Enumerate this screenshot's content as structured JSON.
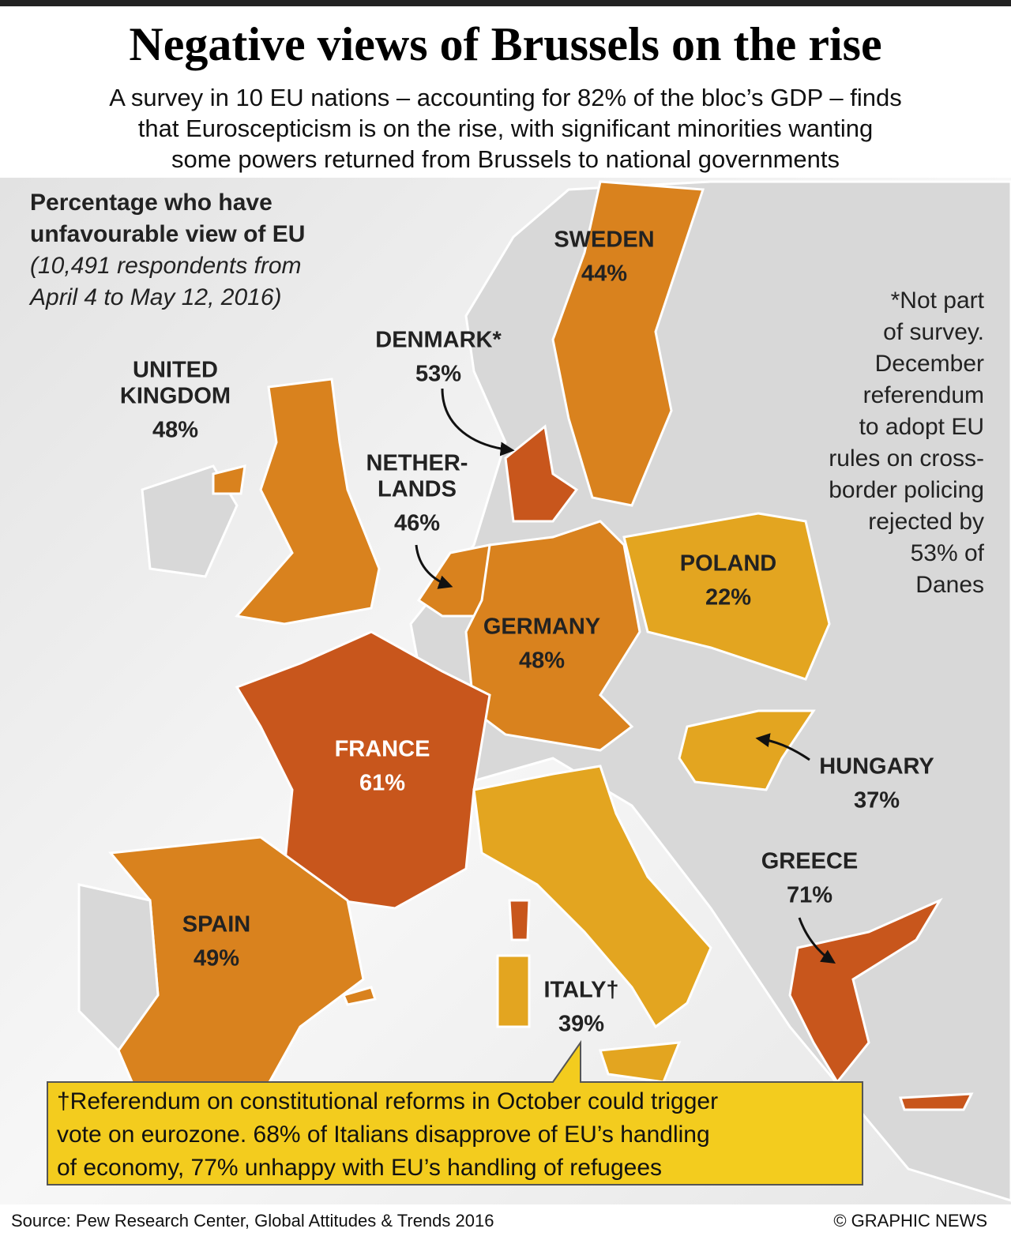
{
  "header": {
    "title": "Negative views of Brussels on the rise",
    "subtitle": [
      "A survey in 10 EU nations – accounting for 82% of the bloc’s GDP – finds",
      "that Euroscepticism is on the rise, with significant minorities wanting",
      "some powers returned from Brussels to national governments"
    ]
  },
  "key": {
    "heading": [
      "Percentage who have",
      "unfavourable view of EU"
    ],
    "note": [
      "(10,491 respondents from",
      "April 4 to May 12, 2016)"
    ]
  },
  "countries": [
    {
      "name": [
        "SWEDEN"
      ],
      "value": 44,
      "value_label": "44%",
      "color": "#d9821e",
      "text_color": "#222"
    },
    {
      "name": [
        "DENMARK*"
      ],
      "value": 53,
      "value_label": "53%",
      "color": "#c8561c",
      "text_color": "#222"
    },
    {
      "name": [
        "UNITED",
        "KINGDOM"
      ],
      "value": 48,
      "value_label": "48%",
      "color": "#d9821e",
      "text_color": "#222"
    },
    {
      "name": [
        "NETHER-",
        "LANDS"
      ],
      "value": 46,
      "value_label": "46%",
      "color": "#d9821e",
      "text_color": "#222"
    },
    {
      "name": [
        "POLAND"
      ],
      "value": 22,
      "value_label": "22%",
      "color": "#e3a520",
      "text_color": "#222"
    },
    {
      "name": [
        "GERMANY"
      ],
      "value": 48,
      "value_label": "48%",
      "color": "#d9821e",
      "text_color": "#222"
    },
    {
      "name": [
        "FRANCE"
      ],
      "value": 61,
      "value_label": "61%",
      "color": "#c8561c",
      "text_color": "#ffffff"
    },
    {
      "name": [
        "HUNGARY"
      ],
      "value": 37,
      "value_label": "37%",
      "color": "#e3a520",
      "text_color": "#222"
    },
    {
      "name": [
        "GREECE"
      ],
      "value": 71,
      "value_label": "71%",
      "color": "#c8561c",
      "text_color": "#222"
    },
    {
      "name": [
        "SPAIN"
      ],
      "value": 49,
      "value_label": "49%",
      "color": "#d9821e",
      "text_color": "#222"
    },
    {
      "name": [
        "ITALY†"
      ],
      "value": 39,
      "value_label": "39%",
      "color": "#e3a520",
      "text_color": "#222"
    }
  ],
  "denmark_note": [
    "*Not part",
    "of survey.",
    "December",
    "referendum",
    "to adopt EU",
    "rules on cross-",
    "border policing",
    "rejected by",
    "53% of",
    "Danes"
  ],
  "italy_note": [
    "†Referendum on constitutional reforms in October could trigger",
    "vote on eurozone. 68% of Italians disapprove of EU’s handling",
    "of economy, 77% unhappy with EU’s handling of refugees"
  ],
  "footer": {
    "source": "Source: Pew Research Center, Global Attitudes & Trends 2016",
    "credit": "© GRAPHIC NEWS"
  }
}
